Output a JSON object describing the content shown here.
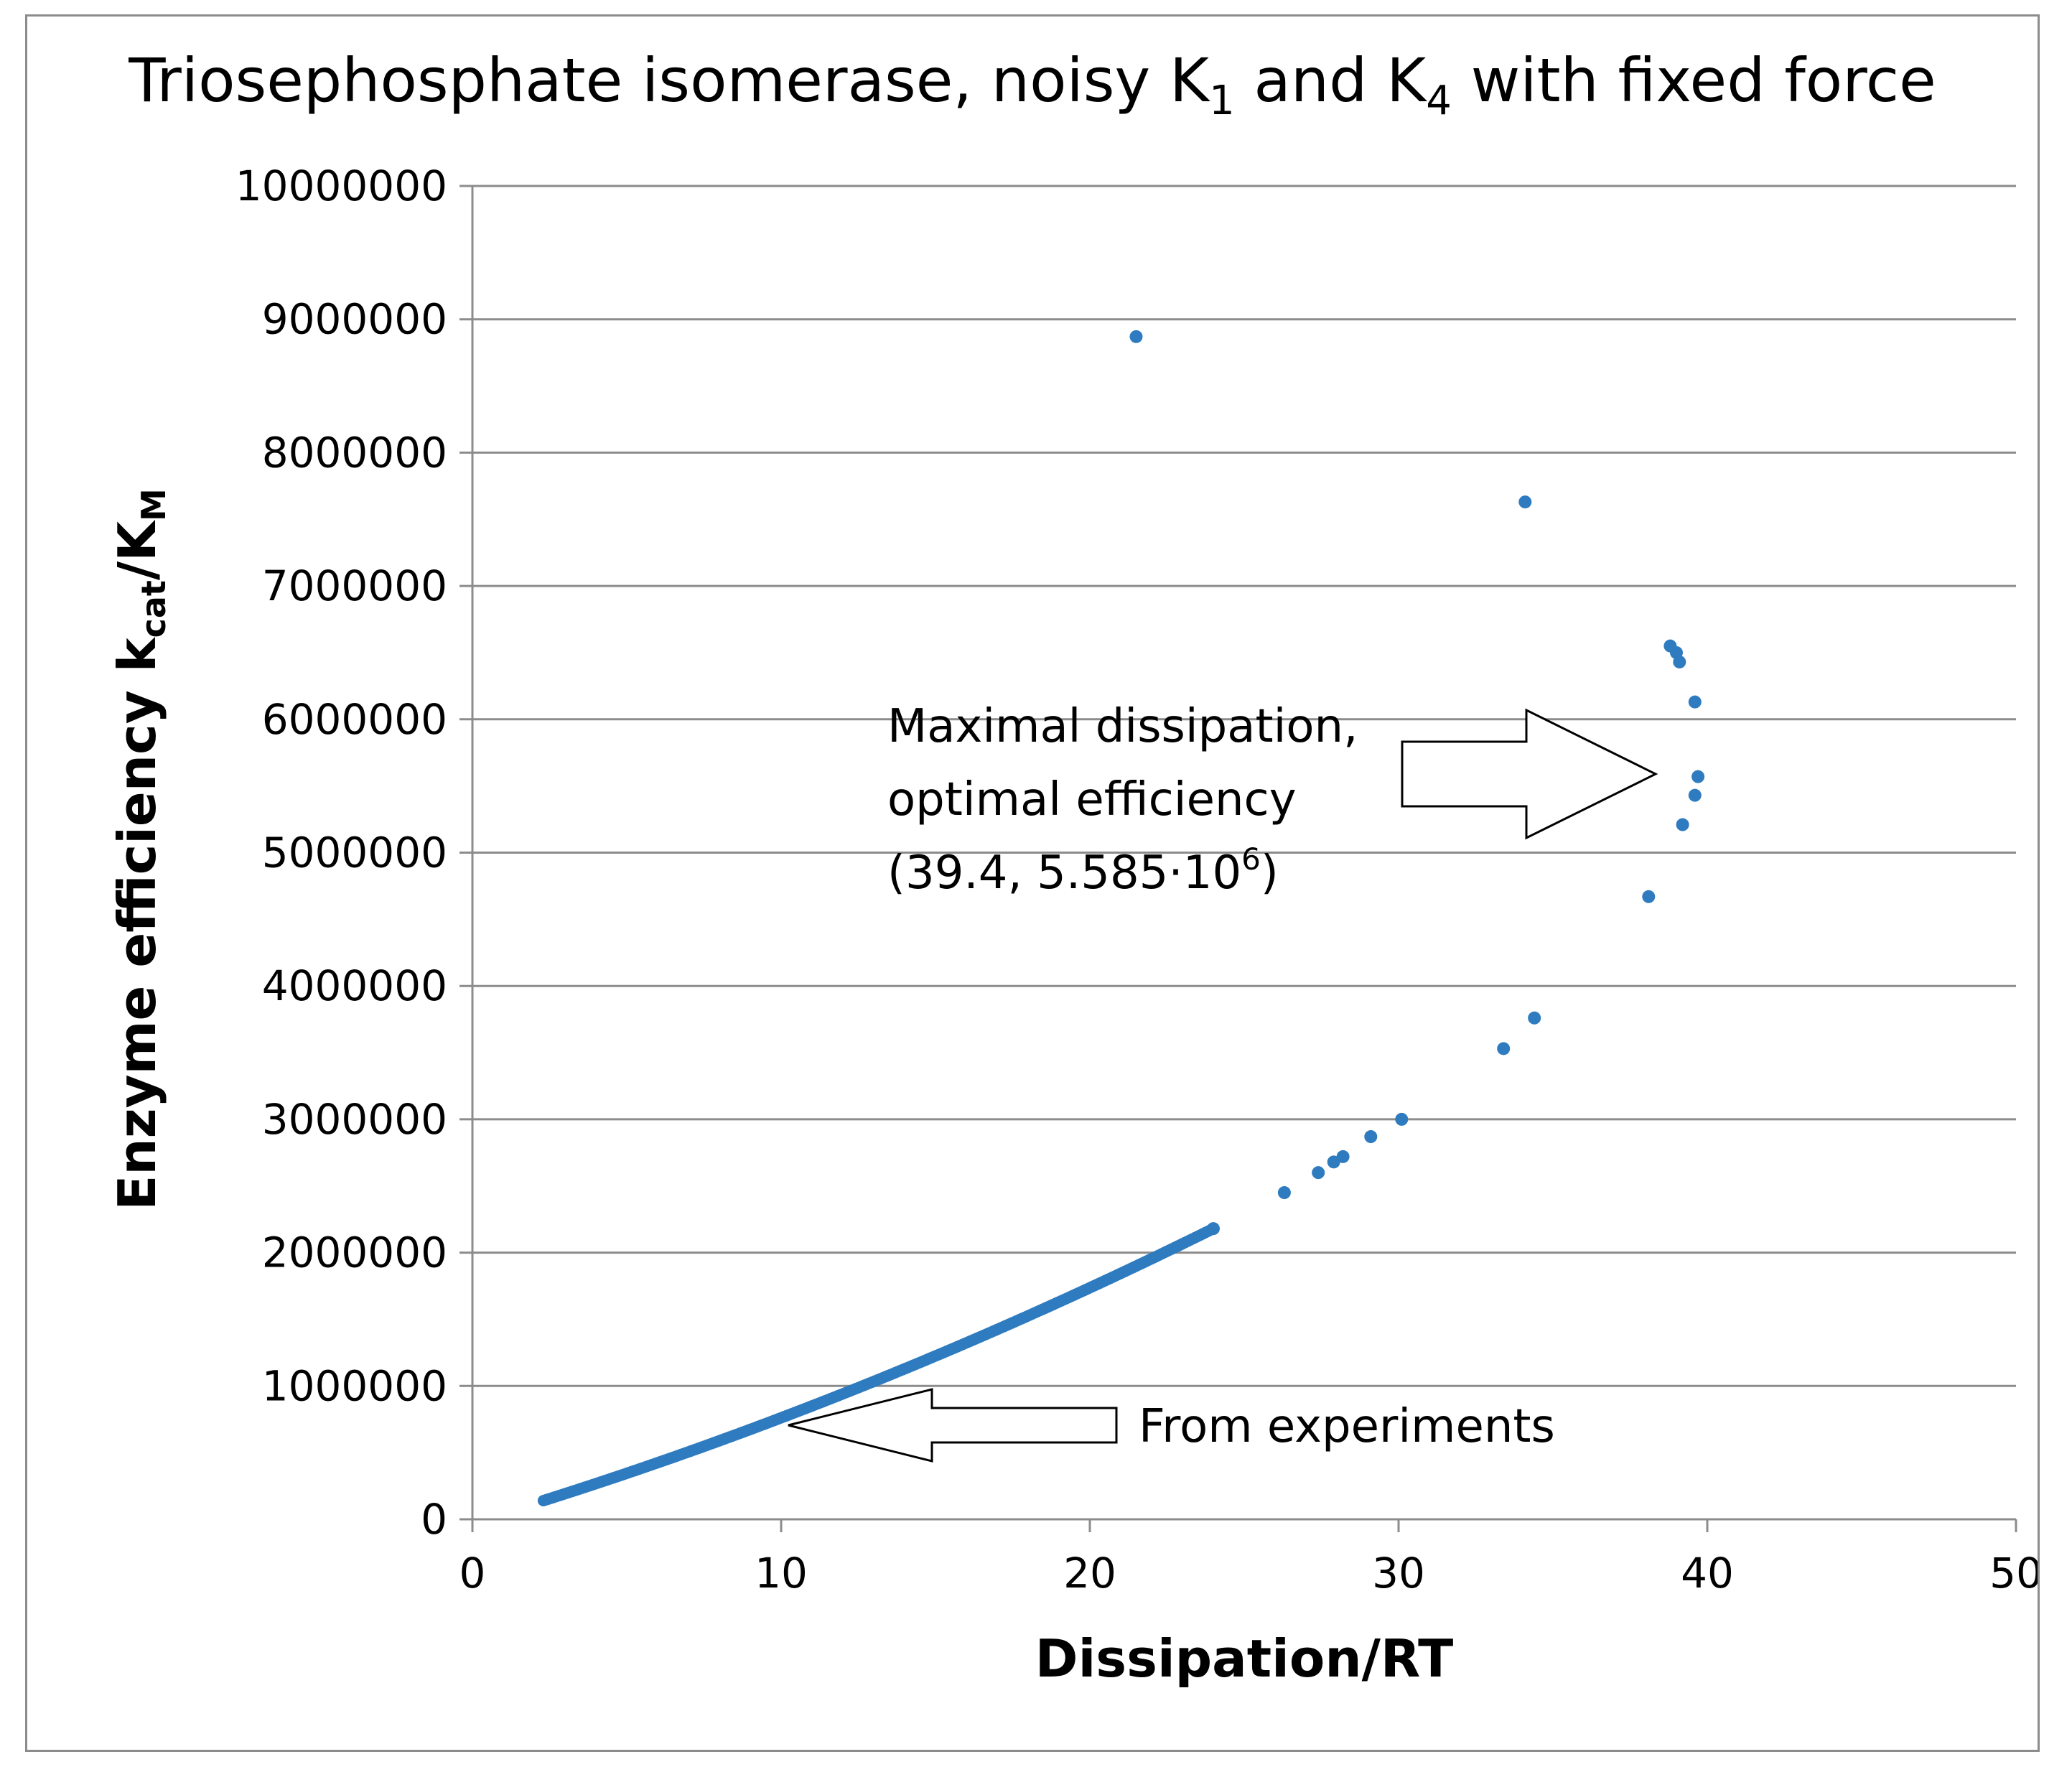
{
  "chart_data": {
    "type": "scatter",
    "title": {
      "prefix": "Triosephosphate isomerase, noisy K",
      "sub1": "1",
      "middle": " and K",
      "sub2": "4",
      "suffix": " with fixed force"
    },
    "xlabel": "Dissipation/RT",
    "ylabel": {
      "prefix": "Enzyme  efficiency  k",
      "sub1": "cat",
      "middle": "/K",
      "sub2": "M"
    },
    "xlim": [
      0,
      50
    ],
    "ylim": [
      0,
      10000000
    ],
    "x_ticks": [
      "0",
      "10",
      "20",
      "30",
      "40",
      "50"
    ],
    "y_ticks": [
      "0",
      "1000000",
      "2000000",
      "3000000",
      "4000000",
      "5000000",
      "6000000",
      "7000000",
      "8000000",
      "9000000",
      "10000000"
    ],
    "grid": "horizontal",
    "marker_color": "#2e7bbf",
    "dense_series": {
      "x_start": 2.3,
      "x_end": 24.0,
      "y_start": 140000,
      "y_end": 2180000,
      "count": 260
    },
    "points": [
      {
        "x": 24.0,
        "y": 2180000
      },
      {
        "x": 26.3,
        "y": 2450000
      },
      {
        "x": 27.4,
        "y": 2600000
      },
      {
        "x": 27.9,
        "y": 2680000
      },
      {
        "x": 28.2,
        "y": 2720000
      },
      {
        "x": 29.1,
        "y": 2870000
      },
      {
        "x": 30.1,
        "y": 3000000
      },
      {
        "x": 33.4,
        "y": 3530000
      },
      {
        "x": 34.4,
        "y": 3760000
      },
      {
        "x": 38.1,
        "y": 4670000
      },
      {
        "x": 39.2,
        "y": 5210000
      },
      {
        "x": 39.6,
        "y": 5430000
      },
      {
        "x": 39.7,
        "y": 5570000
      },
      {
        "x": 39.6,
        "y": 6130000
      },
      {
        "x": 39.1,
        "y": 6430000
      },
      {
        "x": 39.0,
        "y": 6500000
      },
      {
        "x": 38.8,
        "y": 6550000
      },
      {
        "x": 34.1,
        "y": 7630000
      },
      {
        "x": 21.5,
        "y": 8870000
      }
    ],
    "annotations": {
      "max": {
        "line1": "Maximal dissipation,",
        "line2": "optimal efficiency",
        "line3_prefix": "(39.4, 5.585·10",
        "line3_sup": "6",
        "line3_suffix": ")"
      },
      "experiments": "From experiments"
    }
  }
}
